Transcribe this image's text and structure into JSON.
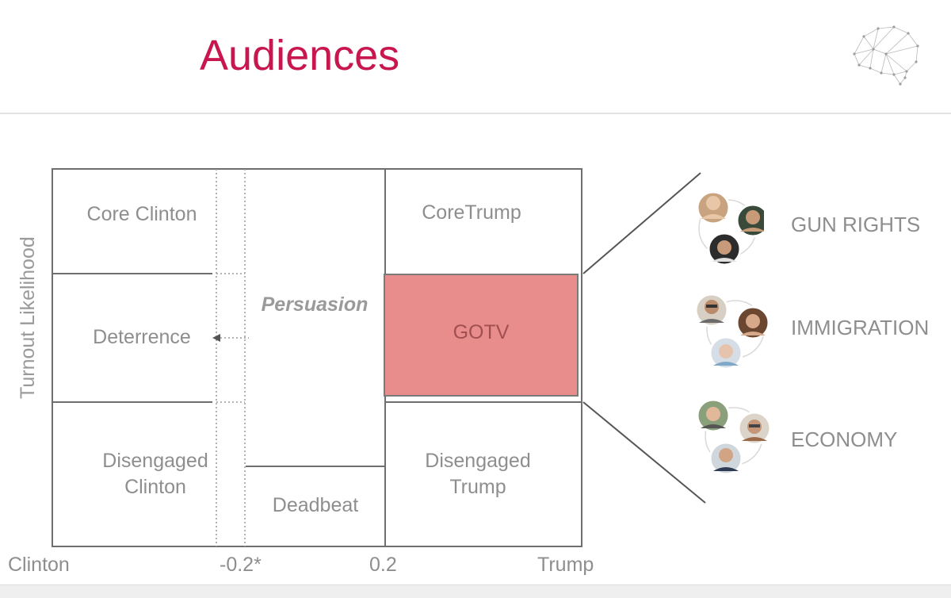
{
  "header": {
    "title": "Audiences",
    "logo_icon": "brain-network-icon"
  },
  "axes": {
    "y_label": "Turnout Likelihood",
    "x_ticks": [
      "Clinton",
      "-0.2*",
      "0.2",
      "Trump"
    ]
  },
  "segments": {
    "core_clinton": "Core Clinton",
    "deterrence": "Deterrence",
    "disengaged_clinton": "Disengaged\nClinton",
    "persuasion": "Persuasion",
    "deadbeat": "Deadbeat",
    "core_trump": "CoreTrump",
    "gotv": "GOTV",
    "disengaged_trump": "Disengaged\nTrump"
  },
  "topics": [
    {
      "label": "GUN RIGHTS",
      "avatar_icon": "people-group-icon"
    },
    {
      "label": "IMMIGRATION",
      "avatar_icon": "people-group-icon"
    },
    {
      "label": "ECONOMY",
      "avatar_icon": "people-group-icon"
    }
  ],
  "colors": {
    "title": "#c8174f",
    "gotv_fill": "#e88d8b",
    "text": "#8e8e8e"
  }
}
